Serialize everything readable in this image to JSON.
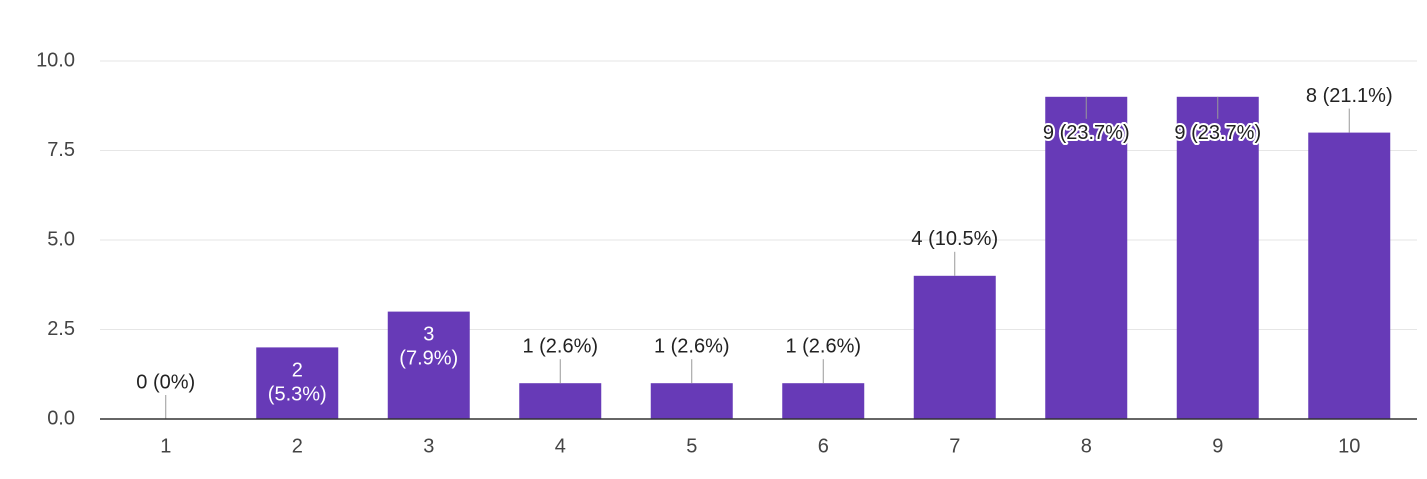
{
  "chart_data": {
    "type": "bar",
    "categories": [
      "1",
      "2",
      "3",
      "4",
      "5",
      "6",
      "7",
      "8",
      "9",
      "10"
    ],
    "values": [
      0,
      2,
      3,
      1,
      1,
      1,
      4,
      9,
      9,
      8
    ],
    "value_labels": [
      "0 (0%)",
      "2 (5.3%)",
      "3 (7.9%)",
      "1 (2.6%)",
      "1 (2.6%)",
      "1 (2.6%)",
      "4 (10.5%)",
      "9 (23.7%)",
      "9 (23.7%)",
      "8 (21.1%)"
    ],
    "color": "#673ab7",
    "ylim": [
      0,
      10
    ],
    "yticks": [
      {
        "value": 0,
        "label": "0.0"
      },
      {
        "value": 2.5,
        "label": "2.5"
      },
      {
        "value": 5,
        "label": "5.0"
      },
      {
        "value": 7.5,
        "label": "7.5"
      },
      {
        "value": 10,
        "label": "10.0"
      }
    ],
    "grid": true
  }
}
